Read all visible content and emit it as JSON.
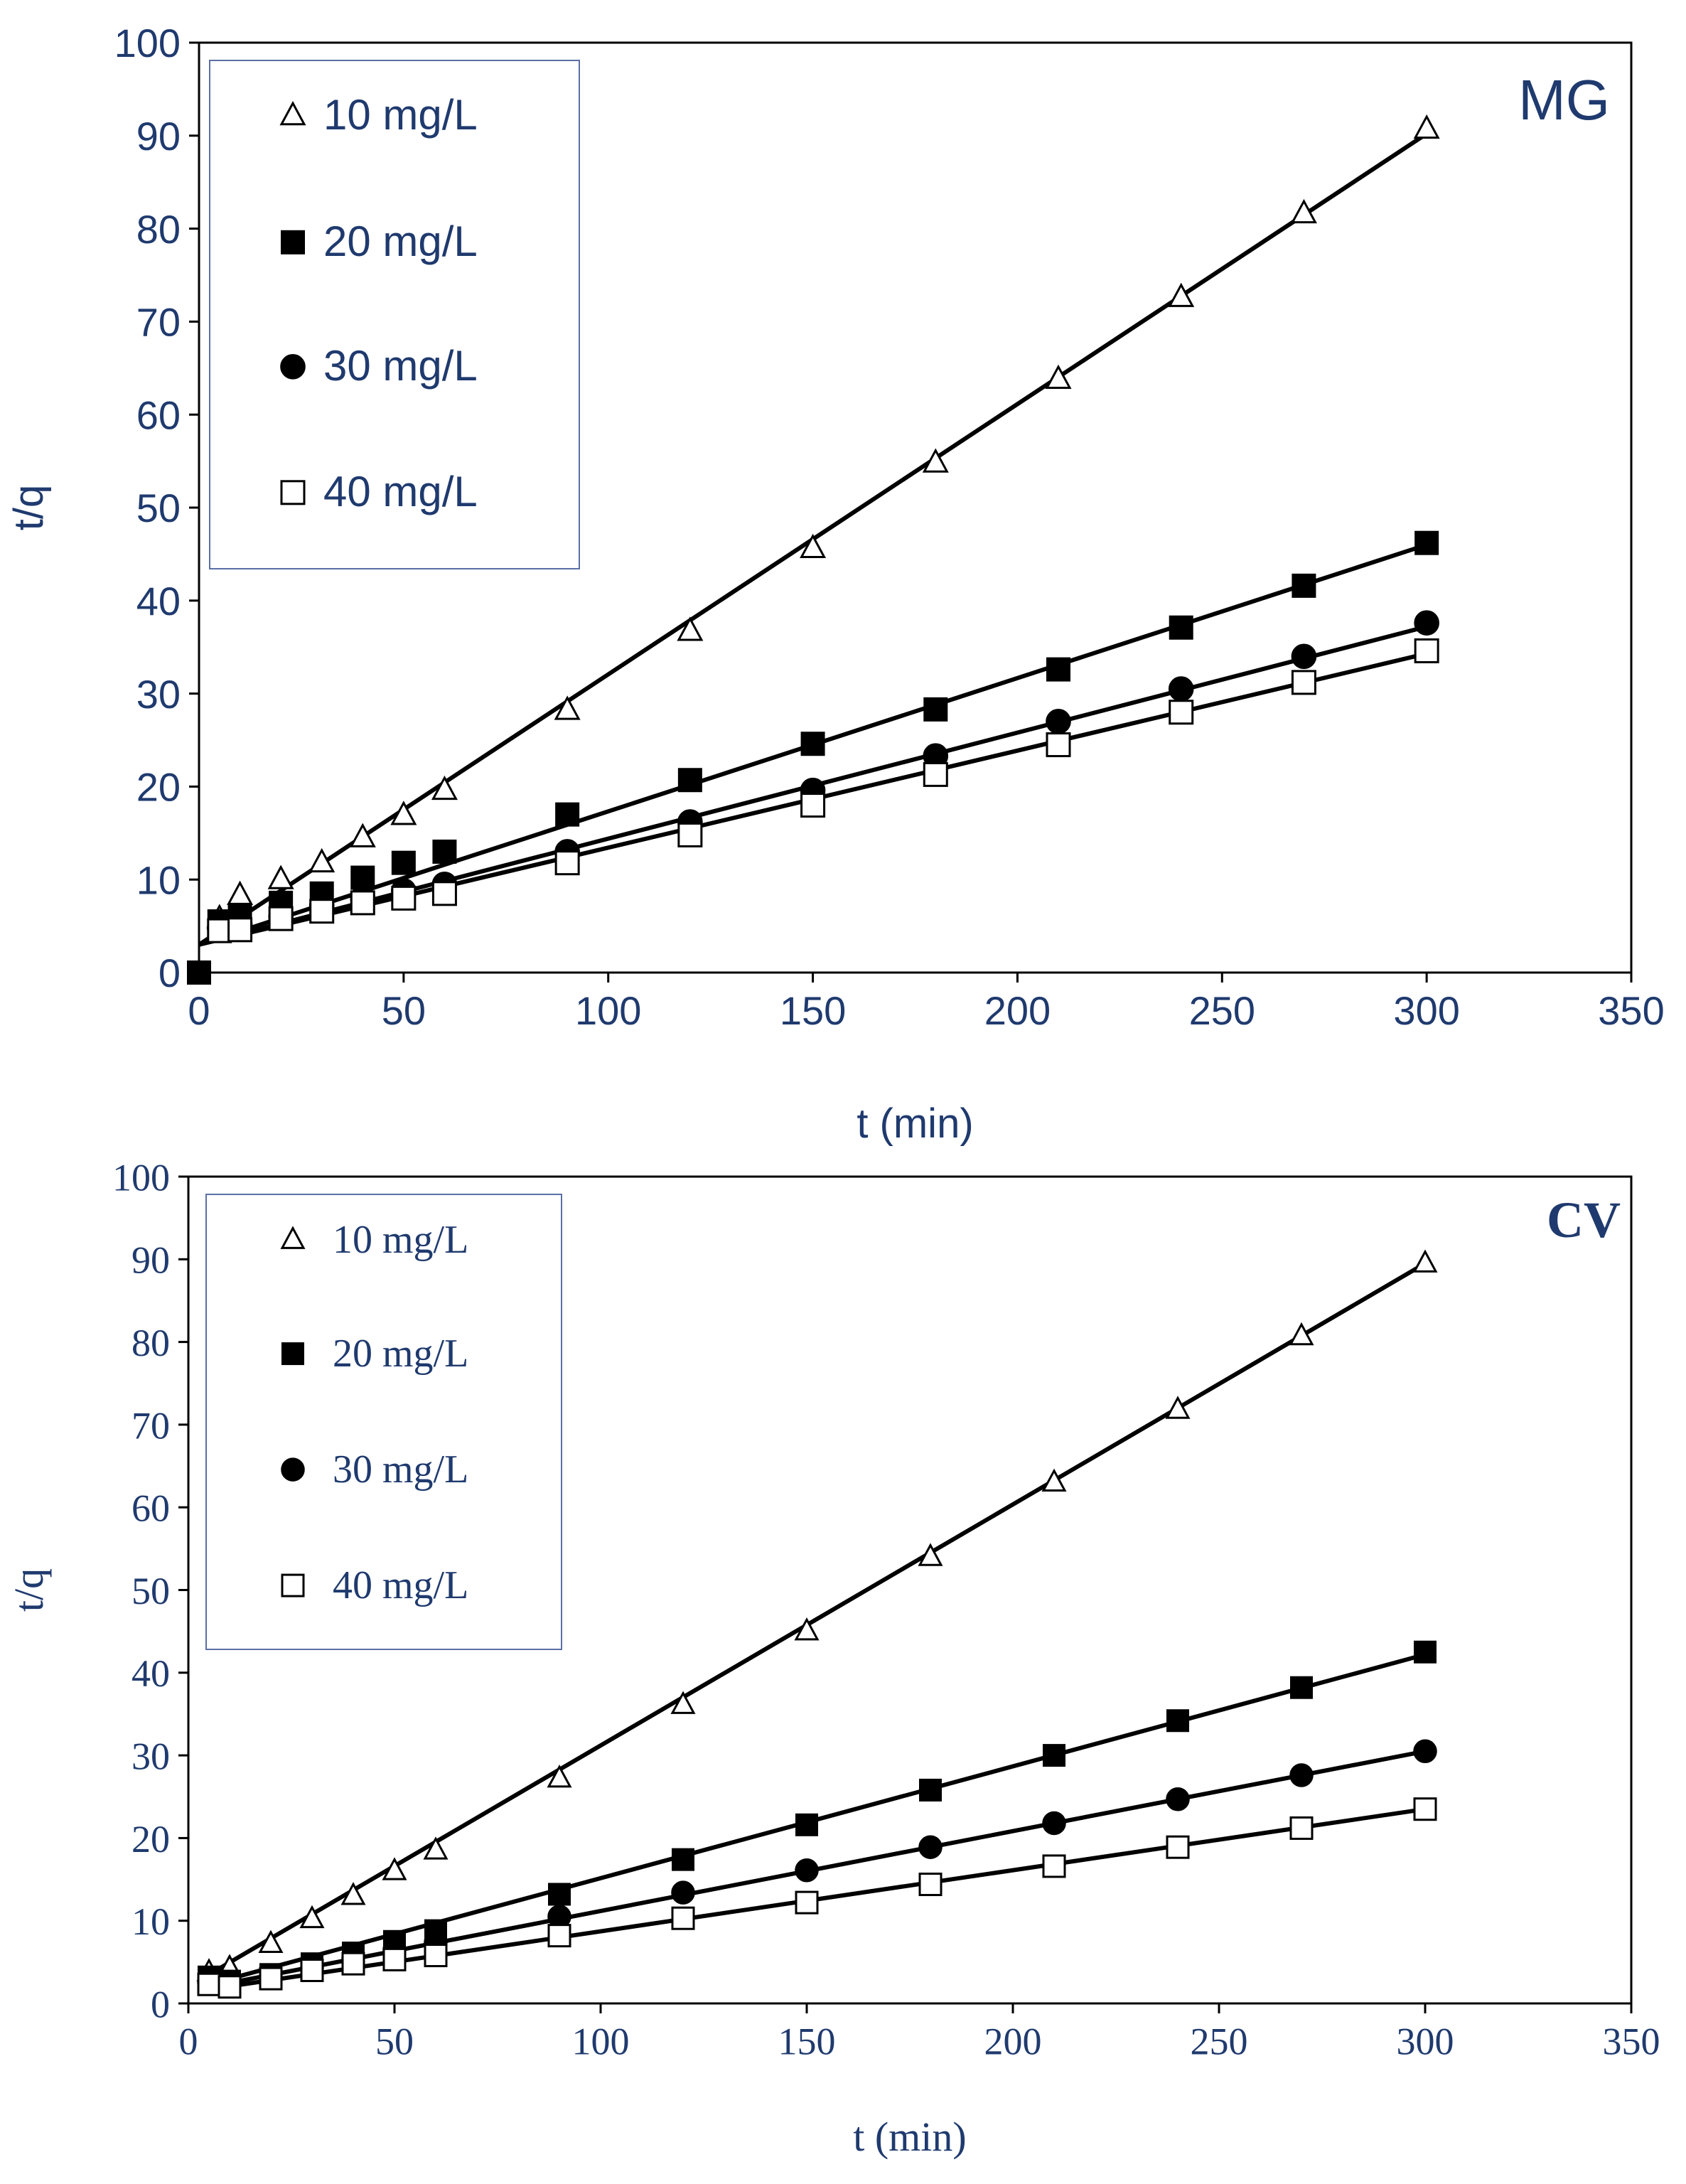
{
  "chart_data": [
    {
      "id": "mg",
      "type": "scatter",
      "title": "MG",
      "xlabel": "t (min)",
      "ylabel": "t/q",
      "xlim": [
        0,
        350
      ],
      "ylim": [
        0,
        100
      ],
      "xticks": [
        0,
        50,
        100,
        150,
        200,
        250,
        300,
        350
      ],
      "yticks": [
        0,
        10,
        20,
        30,
        40,
        50,
        60,
        70,
        80,
        90,
        100
      ],
      "grid": false,
      "legend_position": "top-left",
      "series": [
        {
          "name": "10 mg/L",
          "marker": "triangle-open",
          "x": [
            5,
            10,
            20,
            30,
            40,
            50,
            60,
            90,
            120,
            150,
            180,
            210,
            240,
            270,
            300
          ],
          "y": [
            5.8,
            8.3,
            10.0,
            11.8,
            14.5,
            16.9,
            19.6,
            28.2,
            36.7,
            45.6,
            54.8,
            63.8,
            72.6,
            81.6,
            90.7
          ],
          "fit": [
            [
              0,
              3.0
            ],
            [
              300,
              90.2
            ]
          ]
        },
        {
          "name": "20 mg/L",
          "marker": "square-filled",
          "x": [
            0,
            5,
            10,
            20,
            30,
            40,
            50,
            60,
            90,
            120,
            150,
            180,
            210,
            240,
            270,
            300
          ],
          "y": [
            0,
            5.5,
            6.0,
            7.5,
            8.5,
            10.2,
            11.8,
            13.0,
            17.0,
            20.7,
            24.6,
            28.3,
            32.6,
            37.1,
            41.6,
            46.2
          ],
          "fit": [
            [
              0,
              3.0
            ],
            [
              300,
              46.0
            ]
          ]
        },
        {
          "name": "30 mg/L",
          "marker": "circle-filled",
          "x": [
            5,
            10,
            20,
            30,
            40,
            50,
            60,
            90,
            120,
            150,
            180,
            210,
            240,
            270,
            300
          ],
          "y": [
            4.8,
            5.2,
            6.0,
            7.2,
            8.0,
            8.8,
            9.5,
            13.0,
            16.2,
            19.6,
            23.3,
            27.0,
            30.5,
            34.0,
            37.6
          ],
          "fit": [
            [
              0,
              3.0
            ],
            [
              300,
              37.2
            ]
          ]
        },
        {
          "name": "40 mg/L",
          "marker": "square-open",
          "x": [
            5,
            10,
            20,
            30,
            40,
            50,
            60,
            90,
            120,
            150,
            180,
            210,
            240,
            270,
            300
          ],
          "y": [
            4.5,
            4.6,
            5.8,
            6.6,
            7.5,
            8.0,
            8.5,
            11.8,
            14.8,
            18.0,
            21.3,
            24.5,
            28.0,
            31.2,
            34.6
          ],
          "fit": [
            [
              0,
              3.0
            ],
            [
              300,
              34.3
            ]
          ]
        }
      ]
    },
    {
      "id": "cv",
      "type": "scatter",
      "title": "CV",
      "xlabel": "t (min)",
      "ylabel": "t/q",
      "xlim": [
        0,
        350
      ],
      "ylim": [
        0,
        100
      ],
      "xticks": [
        0,
        50,
        100,
        150,
        200,
        250,
        300,
        350
      ],
      "yticks": [
        0,
        10,
        20,
        30,
        40,
        50,
        60,
        70,
        80,
        90,
        100
      ],
      "grid": false,
      "legend_position": "top-left",
      "series": [
        {
          "name": "10 mg/L",
          "marker": "triangle-open",
          "x": [
            5,
            10,
            20,
            30,
            40,
            50,
            60,
            90,
            120,
            150,
            180,
            210,
            240,
            270,
            300
          ],
          "y": [
            3.8,
            4.3,
            7.2,
            10.2,
            13.0,
            16.0,
            18.5,
            27.2,
            36.1,
            45.0,
            54.0,
            63.0,
            71.8,
            80.7,
            89.5
          ],
          "fit": [
            [
              5,
              3.5
            ],
            [
              300,
              89.5
            ]
          ]
        },
        {
          "name": "20 mg/L",
          "marker": "square-filled",
          "x": [
            5,
            10,
            20,
            30,
            40,
            50,
            60,
            90,
            120,
            150,
            180,
            210,
            240,
            270,
            300
          ],
          "y": [
            3.2,
            2.7,
            3.5,
            4.8,
            6.1,
            7.5,
            8.8,
            13.2,
            17.4,
            21.6,
            25.8,
            30.0,
            34.2,
            38.2,
            42.5
          ],
          "fit": [
            [
              5,
              2.3
            ],
            [
              300,
              42.2
            ]
          ]
        },
        {
          "name": "30 mg/L",
          "marker": "circle-filled",
          "x": [
            5,
            10,
            20,
            30,
            40,
            50,
            60,
            90,
            120,
            150,
            180,
            210,
            240,
            270,
            300
          ],
          "y": [
            2.6,
            2.2,
            3.2,
            4.3,
            5.5,
            6.5,
            7.4,
            10.5,
            13.4,
            16.1,
            18.9,
            21.8,
            24.7,
            27.6,
            30.5
          ],
          "fit": [
            [
              5,
              2.0
            ],
            [
              300,
              30.5
            ]
          ]
        },
        {
          "name": "40 mg/L",
          "marker": "square-open",
          "x": [
            5,
            10,
            20,
            30,
            40,
            50,
            60,
            90,
            120,
            150,
            180,
            210,
            240,
            270,
            300
          ],
          "y": [
            2.3,
            2.0,
            3.0,
            4.0,
            4.8,
            5.3,
            5.8,
            8.2,
            10.3,
            12.2,
            14.4,
            16.6,
            18.9,
            21.2,
            23.5
          ],
          "fit": [
            [
              5,
              1.7
            ],
            [
              300,
              23.5
            ]
          ]
        }
      ]
    }
  ]
}
